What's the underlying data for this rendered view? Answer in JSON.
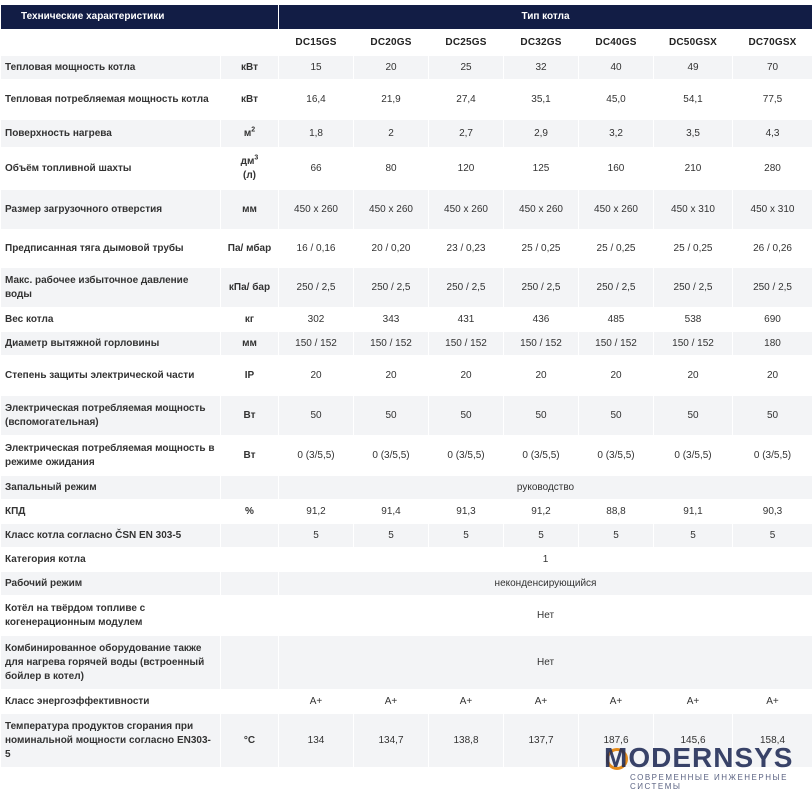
{
  "header": {
    "specs_title": "Технические характеристики",
    "type_title": "Тип котла"
  },
  "models": [
    "DC15GS",
    "DC20GS",
    "DC25GS",
    "DC32GS",
    "DC40GS",
    "DC50GSX",
    "DC70GSX"
  ],
  "rows": [
    {
      "param": "Тепловая мощность котла",
      "unit": "кВт",
      "values": [
        "15",
        "20",
        "25",
        "32",
        "40",
        "49",
        "70"
      ],
      "h": 24
    },
    {
      "param": "Тепловая потребляемая мощность котла",
      "unit": "кВт",
      "values": [
        "16,4",
        "21,9",
        "27,4",
        "35,1",
        "45,0",
        "54,1",
        "77,5"
      ],
      "h": 40
    },
    {
      "param": "Поверхность нагрева",
      "unit": "м",
      "unit_sup": "2",
      "values": [
        "1,8",
        "2",
        "2,7",
        "2,9",
        "3,2",
        "3,5",
        "4,3"
      ],
      "h": 28
    },
    {
      "param": "Объём топливной шахты",
      "unit": "дм",
      "unit_sup": "3",
      "unit_suffix": "(л)",
      "values": [
        "66",
        "80",
        "120",
        "125",
        "160",
        "210",
        "280"
      ],
      "h": 42
    },
    {
      "param": "Размер загрузочного отверстия",
      "unit": "мм",
      "values": [
        "450 x 260",
        "450 x 260",
        "450 x 260",
        "450 x 260",
        "450 x 260",
        "450 x 310",
        "450 x 310"
      ],
      "h": 40
    },
    {
      "param": "Предписанная тяга дымовой трубы",
      "unit": "Па/ мбар",
      "values": [
        "16 / 0,16",
        "20 / 0,20",
        "23 / 0,23",
        "25 / 0,25",
        "25 / 0,25",
        "25 / 0,25",
        "26 / 0,26"
      ],
      "h": 38
    },
    {
      "param": "Макс. рабочее избыточное давление воды",
      "unit": "кПа/ бар",
      "values": [
        "250 / 2,5",
        "250 / 2,5",
        "250 / 2,5",
        "250 / 2,5",
        "250 / 2,5",
        "250 / 2,5",
        "250 / 2,5"
      ],
      "h": 40
    },
    {
      "param": "Вес котла",
      "unit": "кг",
      "values": [
        "302",
        "343",
        "431",
        "436",
        "485",
        "538",
        "690"
      ],
      "h": 24
    },
    {
      "param": "Диаметр вытяжной горловины",
      "unit": "мм",
      "values": [
        "150 / 152",
        "150 / 152",
        "150 / 152",
        "150 / 152",
        "150 / 152",
        "150 / 152",
        "180"
      ],
      "h": 24
    },
    {
      "param": "Степень защиты электрической части",
      "unit": "IP",
      "values": [
        "20",
        "20",
        "20",
        "20",
        "20",
        "20",
        "20"
      ],
      "h": 40
    },
    {
      "param": "Электрическая потребляемая мощность (вспомогательная)",
      "unit": "Вт",
      "values": [
        "50",
        "50",
        "50",
        "50",
        "50",
        "50",
        "50"
      ],
      "h": 40
    },
    {
      "param": "Электрическая потребляемая мощность в режиме ожидания",
      "unit": "Вт",
      "values": [
        "0 (3/5,5)",
        "0 (3/5,5)",
        "0 (3/5,5)",
        "0 (3/5,5)",
        "0 (3/5,5)",
        "0 (3/5,5)",
        "0 (3/5,5)"
      ],
      "h": 40
    },
    {
      "param": "Запальный режим",
      "unit": "",
      "span": "руководство",
      "h": 24
    },
    {
      "param": "КПД",
      "unit": "%",
      "values": [
        "91,2",
        "91,4",
        "91,3",
        "91,2",
        "88,8",
        "91,1",
        "90,3"
      ],
      "h": 24
    },
    {
      "param": "Класс котла согласно ČSN EN 303-5",
      "unit": "",
      "values": [
        "5",
        "5",
        "5",
        "5",
        "5",
        "5",
        "5"
      ],
      "h": 24
    },
    {
      "param": "Категория котла",
      "unit": "",
      "span": "1",
      "h": 24
    },
    {
      "param": "Рабочий режим",
      "unit": "",
      "span": "неконденсирующийся",
      "h": 24
    },
    {
      "param": "Котёл на твёрдом топливе с когенерационным модулем",
      "unit": "",
      "span": "Нет",
      "h": 40
    },
    {
      "param": "Комбинированное оборудование также для нагрева горячей воды (встроенный бойлер в котел)",
      "unit": "",
      "span": "Нет",
      "h": 54
    },
    {
      "param": "Класс энергоэффективности",
      "unit": "",
      "values": [
        "A+",
        "A+",
        "A+",
        "A+",
        "A+",
        "A+",
        "A+"
      ],
      "h": 24
    },
    {
      "param": "Температура продуктов сгорания при номинальной мощности согласно EN303-5",
      "unit": "°C",
      "values": [
        "134",
        "134,7",
        "138,8",
        "137,7",
        "187,6",
        "145,6",
        "158,4"
      ],
      "h": 54
    }
  ],
  "logo": {
    "name": "MODERNSYS",
    "tagline": "СОВРЕМЕННЫЕ ИНЖЕНЕРНЫЕ СИСТЕМЫ"
  }
}
